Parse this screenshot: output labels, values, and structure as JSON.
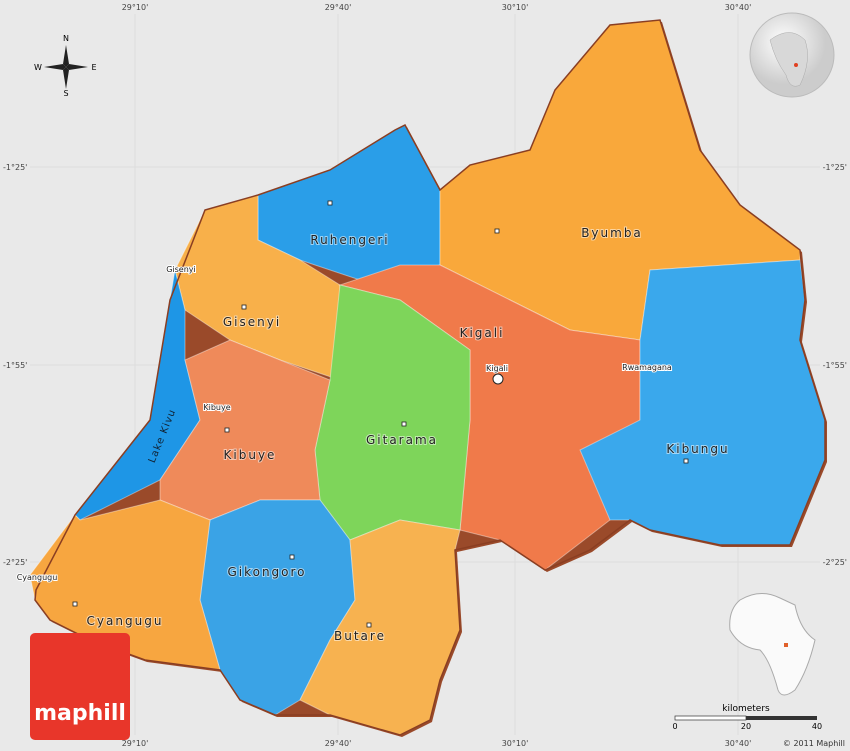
{
  "grid_labels": {
    "top": [
      "29°10'",
      "29°40'",
      "30°10'",
      "30°40'"
    ],
    "bottom": [
      "29°10'",
      "29°40'",
      "30°10'",
      "30°40'"
    ],
    "left": [
      "-1°25'",
      "-1°55'",
      "-2°25'"
    ],
    "right": [
      "-1°25'",
      "-1°55'",
      "-2°25'"
    ]
  },
  "compass": {
    "north": "N",
    "south": "S",
    "east": "E",
    "west": "W"
  },
  "provinces": [
    "Ruhengeri",
    "Byumba",
    "Gisenyi",
    "Kigali",
    "Gitarama",
    "Kibuye",
    "Kibungu",
    "Gikongoro",
    "Butare",
    "Cyangugu"
  ],
  "water": "Lake Kivu",
  "cities": [
    "Gisenyi",
    "Kibuye",
    "Cyangugu",
    "Kigali",
    "Rwamagana"
  ],
  "scale": {
    "unit": "kilometers",
    "labels": [
      "0",
      "20",
      "40"
    ]
  },
  "copyright": "© 2011 Maphill",
  "logo": "maphill"
}
